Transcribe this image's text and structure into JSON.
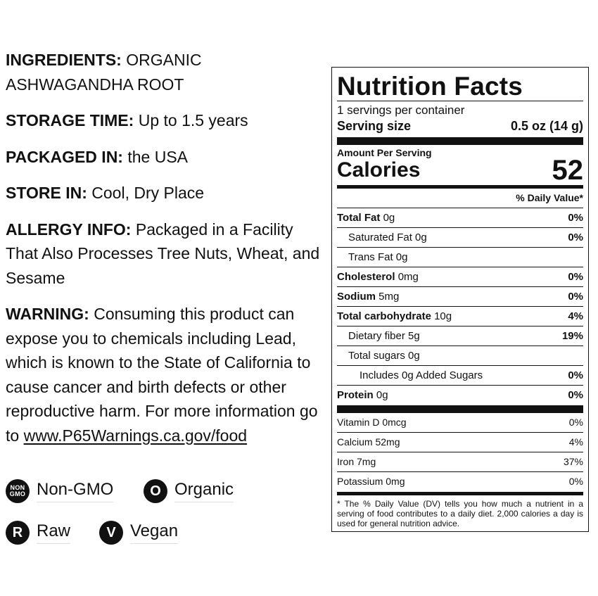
{
  "info": {
    "ingredients_label": "INGREDIENTS:",
    "ingredients_value": "ORGANIC ASHWAGANDHA ROOT",
    "storage_label": "STORAGE TIME:",
    "storage_value": "Up to 1.5 years",
    "packaged_label": "PACKAGED IN:",
    "packaged_value": "the USA",
    "storein_label": "STORE IN:",
    "storein_value": "Cool, Dry Place",
    "allergy_label": "ALLERGY INFO:",
    "allergy_value": "Packaged in a Facility That Also Processes Tree Nuts, Wheat, and Sesame",
    "warning_label": "WARNING:",
    "warning_value": "Consuming this product can expose you to chemicals including Lead, which is known to the State of California to cause cancer and birth defects or other reproductive harm. For more information go to",
    "warning_link": "www.P65Warnings.ca.gov/food"
  },
  "badges": {
    "nongmo": {
      "icon_line1": "NON",
      "icon_line2": "GMO",
      "label": "Non-GMO"
    },
    "organic": {
      "icon": "O",
      "label": "Organic"
    },
    "raw": {
      "icon": "R",
      "label": "Raw"
    },
    "vegan": {
      "icon": "V",
      "label": "Vegan"
    }
  },
  "nutrition": {
    "title": "Nutrition Facts",
    "servings_per_container": "1 servings per container",
    "serving_size_label": "Serving size",
    "serving_size_value": "0.5 oz (14 g)",
    "amount_per_serving": "Amount Per Serving",
    "calories_label": "Calories",
    "calories_value": "52",
    "dv_header": "% Daily Value*",
    "rows": [
      {
        "name": "Total Fat",
        "amount": "0g",
        "dv": "0%"
      },
      {
        "name": "Saturated Fat 0g",
        "amount": "",
        "dv": "0%"
      },
      {
        "name": "Trans Fat 0g",
        "amount": "",
        "dv": ""
      },
      {
        "name": "Cholesterol",
        "amount": "0mg",
        "dv": "0%"
      },
      {
        "name": "Sodium",
        "amount": "5mg",
        "dv": "0%"
      },
      {
        "name": "Total carbohydrate",
        "amount": "10g",
        "dv": "4%"
      },
      {
        "name": "Dietary fiber 5g",
        "amount": "",
        "dv": "19%"
      },
      {
        "name": "Total sugars 0g",
        "amount": "",
        "dv": ""
      },
      {
        "name": "Includes 0g Added Sugars",
        "amount": "",
        "dv": "0%"
      },
      {
        "name": "Protein",
        "amount": "0g",
        "dv": "0%"
      }
    ],
    "vitamins": [
      {
        "name": "Vitamin D 0mcg",
        "dv": "0%"
      },
      {
        "name": "Calcium 52mg",
        "dv": "4%"
      },
      {
        "name": "Iron 7mg",
        "dv": "37%"
      },
      {
        "name": "Potassium 0mg",
        "dv": "0%"
      }
    ],
    "footnote": "* The % Daily Value (DV) tells you how much a nutrient in a serving of food contributes to a daily diet. 2,000 calories a day is used for general nutrition advice."
  }
}
